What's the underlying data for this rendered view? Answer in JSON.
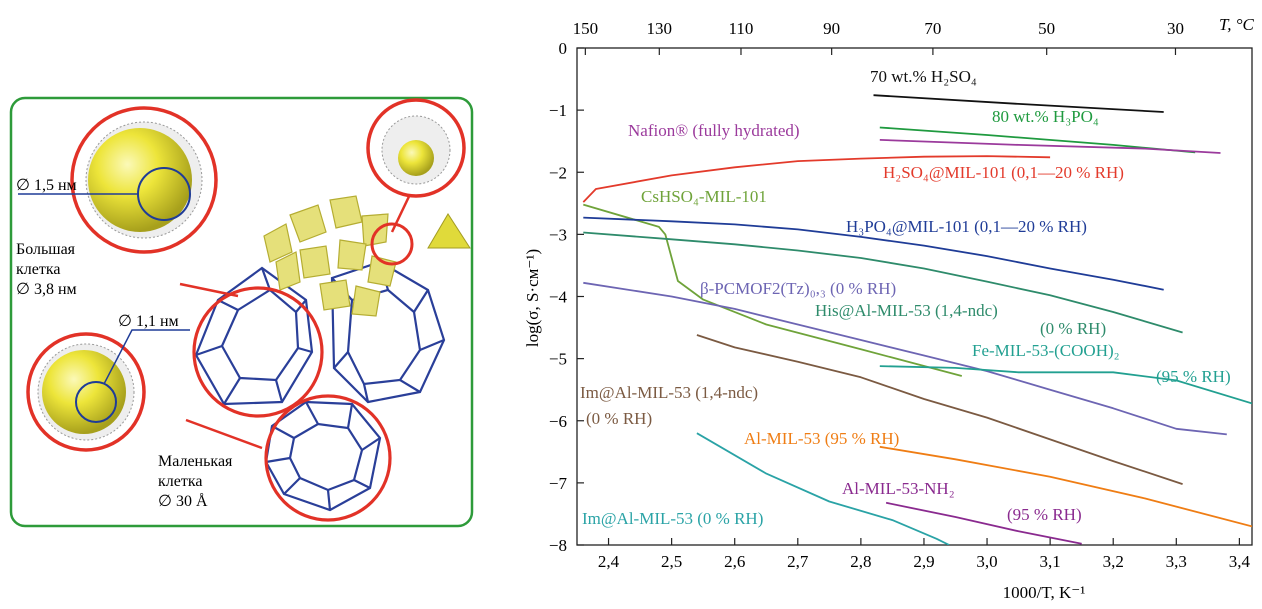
{
  "figure_left": {
    "label_large_diam": "∅ 1,5 нм",
    "label_large_cage_1": "Большая",
    "label_large_cage_2": "клетка",
    "label_large_cage_3": "∅ 3,8 нм",
    "label_small_diam": "∅ 1,1 нм",
    "label_small_cage_1": "Маленькая",
    "label_small_cage_2": "клетка",
    "label_small_cage_3": "∅ 30 Å",
    "colors": {
      "frame": "#2e9b3a",
      "circle": "#e23227",
      "sphere": "#e6e02a",
      "framework": "#2a3f99",
      "polyhedra": "#e5e07a"
    }
  },
  "chart_data": {
    "type": "line",
    "xlabel": "1000/T, K⁻¹",
    "ylabel": "log(σ, S·см⁻¹)",
    "top_axis_label": "T, °C",
    "xlim": [
      2.35,
      3.42
    ],
    "ylim": [
      -8,
      0
    ],
    "x_ticks": [
      {
        "value": 2.4,
        "label": "2,4"
      },
      {
        "value": 2.5,
        "label": "2,5"
      },
      {
        "value": 2.6,
        "label": "2,6"
      },
      {
        "value": 2.7,
        "label": "2,7"
      },
      {
        "value": 2.8,
        "label": "2,8"
      },
      {
        "value": 2.9,
        "label": "2,9"
      },
      {
        "value": 3.0,
        "label": "3,0"
      },
      {
        "value": 3.1,
        "label": "3,1"
      },
      {
        "value": 3.2,
        "label": "3,2"
      },
      {
        "value": 3.3,
        "label": "3,3"
      },
      {
        "value": 3.4,
        "label": "3,4"
      }
    ],
    "y_ticks": [
      {
        "value": 0,
        "label": "0"
      },
      {
        "value": -1,
        "label": "−1"
      },
      {
        "value": -2,
        "label": "−2"
      },
      {
        "value": -3,
        "label": "−3"
      },
      {
        "value": -4,
        "label": "−4"
      },
      {
        "value": -5,
        "label": "−5"
      },
      {
        "value": -6,
        "label": "−6"
      },
      {
        "value": -7,
        "label": "−7"
      },
      {
        "value": -8,
        "label": "−8"
      }
    ],
    "top_ticks": [
      {
        "celsius": 150,
        "label": "150"
      },
      {
        "celsius": 130,
        "label": "130"
      },
      {
        "celsius": 110,
        "label": "110"
      },
      {
        "celsius": 90,
        "label": "90"
      },
      {
        "celsius": 70,
        "label": "70"
      },
      {
        "celsius": 50,
        "label": "50"
      },
      {
        "celsius": 30,
        "label": "30"
      }
    ],
    "series": [
      {
        "name": "70 wt.% H2SO4",
        "color": "#111111",
        "points": [
          [
            2.82,
            -0.76
          ],
          [
            3.05,
            -0.9
          ],
          [
            3.28,
            -1.03
          ]
        ]
      },
      {
        "name": "80 wt.% H3PO4",
        "color": "#1f9a3f",
        "points": [
          [
            2.83,
            -1.28
          ],
          [
            3.0,
            -1.4
          ],
          [
            3.2,
            -1.56
          ],
          [
            3.33,
            -1.68
          ]
        ]
      },
      {
        "name": "Nafion® (fully hydrated)",
        "color": "#9b3a9c",
        "points": [
          [
            2.83,
            -1.48
          ],
          [
            3.05,
            -1.56
          ],
          [
            3.25,
            -1.62
          ],
          [
            3.37,
            -1.69
          ]
        ]
      },
      {
        "name": "H2SO4@MIL-101 (0,1—20 % RH)",
        "color": "#e33a2b",
        "points": [
          [
            2.36,
            -2.48
          ],
          [
            2.38,
            -2.27
          ],
          [
            2.5,
            -2.05
          ],
          [
            2.6,
            -1.92
          ],
          [
            2.7,
            -1.82
          ],
          [
            2.8,
            -1.78
          ],
          [
            2.9,
            -1.75
          ],
          [
            3.0,
            -1.74
          ],
          [
            3.1,
            -1.76
          ]
        ]
      },
      {
        "name": "CsHSO4-MIL-101",
        "color": "#6fa33a",
        "points": [
          [
            2.36,
            -2.52
          ],
          [
            2.48,
            -2.88
          ],
          [
            2.49,
            -3.0
          ],
          [
            2.51,
            -3.75
          ],
          [
            2.55,
            -4.05
          ],
          [
            2.65,
            -4.45
          ],
          [
            2.8,
            -4.85
          ],
          [
            2.96,
            -5.28
          ]
        ]
      },
      {
        "name": "H3PO4@MIL-101 (0,1—20 % RH)",
        "color": "#1f3c97",
        "points": [
          [
            2.36,
            -2.73
          ],
          [
            2.5,
            -2.79
          ],
          [
            2.6,
            -2.84
          ],
          [
            2.7,
            -2.92
          ],
          [
            2.8,
            -3.04
          ],
          [
            2.9,
            -3.18
          ],
          [
            3.0,
            -3.35
          ],
          [
            3.1,
            -3.55
          ],
          [
            3.2,
            -3.73
          ],
          [
            3.28,
            -3.89
          ]
        ]
      },
      {
        "name": "His@Al-MIL-53 (1,4-ndc)",
        "color": "#2e8b6b",
        "points": [
          [
            2.36,
            -2.97
          ],
          [
            2.5,
            -3.08
          ],
          [
            2.6,
            -3.16
          ],
          [
            2.7,
            -3.26
          ],
          [
            2.8,
            -3.38
          ],
          [
            2.9,
            -3.55
          ],
          [
            3.0,
            -3.76
          ],
          [
            3.1,
            -3.98
          ],
          [
            3.2,
            -4.25
          ],
          [
            3.31,
            -4.58
          ]
        ]
      },
      {
        "name": "β-PCMOF2(Tz)0,3 (0 % RH)",
        "color": "#6d65b3",
        "points": [
          [
            2.36,
            -3.78
          ],
          [
            2.5,
            -4.0
          ],
          [
            2.6,
            -4.2
          ],
          [
            2.7,
            -4.45
          ],
          [
            2.8,
            -4.7
          ],
          [
            2.9,
            -4.95
          ],
          [
            3.0,
            -5.2
          ],
          [
            3.1,
            -5.5
          ],
          [
            3.2,
            -5.8
          ],
          [
            3.3,
            -6.13
          ],
          [
            3.38,
            -6.22
          ]
        ]
      },
      {
        "name": "Fe-MIL-53-(COOH)2",
        "color": "#22a091",
        "points": [
          [
            2.83,
            -5.12
          ],
          [
            2.95,
            -5.15
          ],
          [
            3.05,
            -5.22
          ],
          [
            3.2,
            -5.22
          ],
          [
            3.3,
            -5.35
          ],
          [
            3.42,
            -5.72
          ]
        ]
      },
      {
        "name": "Im@Al-MIL-53 (1,4-ndc)",
        "color": "#7b5a42",
        "points": [
          [
            2.54,
            -4.62
          ],
          [
            2.6,
            -4.82
          ],
          [
            2.7,
            -5.05
          ],
          [
            2.8,
            -5.3
          ],
          [
            2.9,
            -5.65
          ],
          [
            3.0,
            -5.95
          ],
          [
            3.1,
            -6.3
          ],
          [
            3.2,
            -6.65
          ],
          [
            3.31,
            -7.02
          ]
        ]
      },
      {
        "name": "Al-MIL-53 (95 % RH)",
        "color": "#ef7d14",
        "points": [
          [
            2.83,
            -6.42
          ],
          [
            2.95,
            -6.62
          ],
          [
            3.1,
            -6.9
          ],
          [
            3.25,
            -7.25
          ],
          [
            3.42,
            -7.7
          ]
        ]
      },
      {
        "name": "Al-MIL-53-NH2",
        "color": "#8a2a8f",
        "points": [
          [
            2.84,
            -7.32
          ],
          [
            2.95,
            -7.55
          ],
          [
            3.05,
            -7.78
          ],
          [
            3.15,
            -7.98
          ]
        ]
      },
      {
        "name": "Im@Al-MIL-53 (0 % RH)",
        "color": "#2aa3a6",
        "points": [
          [
            2.54,
            -6.2
          ],
          [
            2.65,
            -6.85
          ],
          [
            2.75,
            -7.3
          ],
          [
            2.85,
            -7.6
          ],
          [
            2.92,
            -7.9
          ],
          [
            2.94,
            -8.0
          ]
        ]
      }
    ],
    "annotations": {
      "h2so4_70": "70 wt.% H₂SO₄",
      "h3po4_80": "80 wt.% H₃PO₄",
      "nafion": "Nafion® (fully hydrated)",
      "h2so4_mil": "H₂SO₄@MIL-101 (0,1—20 % RH)",
      "cshso4": "CsHSO₄-MIL-101",
      "h3po4_mil": "H₃PO₄@MIL-101 (0,1—20 % RH)",
      "pcmof": "β-PCMOF2(Tz)₀,₃ (0 % RH)",
      "his_1": "His@Al-MIL-53 (1,4-ndc)",
      "his_2": "(0 % RH)",
      "fe_1": "Fe-MIL-53-(COOH)₂",
      "fe_2": "(95 % RH)",
      "im_ndc_1": "Im@Al-MIL-53 (1,4-ndc)",
      "im_ndc_2": "(0 % RH)",
      "almil": "Al-MIL-53 (95 % RH)",
      "nh2_1": "Al-MIL-53-NH₂",
      "nh2_2": "(95 % RH)",
      "im0": "Im@Al-MIL-53 (0 % RH)"
    }
  }
}
